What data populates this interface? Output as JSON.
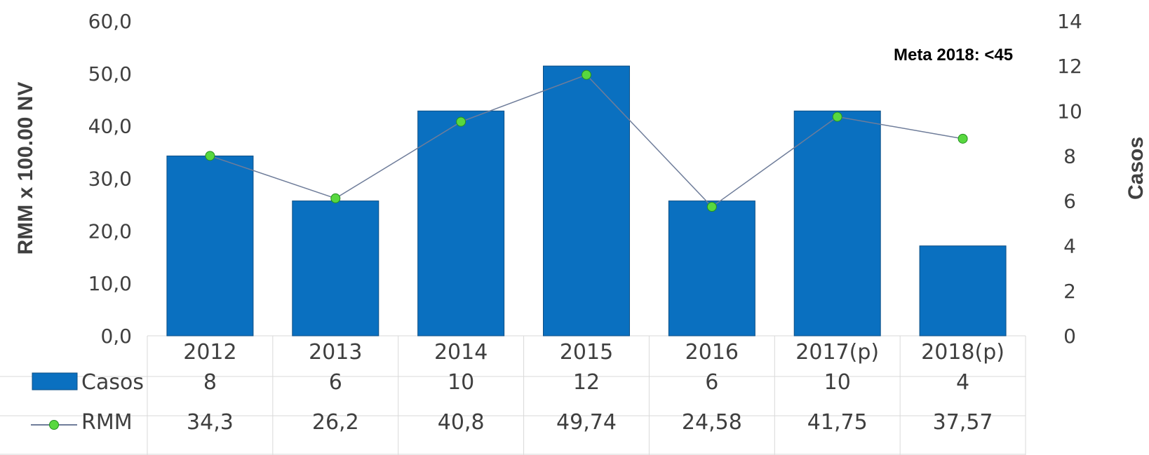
{
  "chart_data": {
    "type": "bar",
    "categories": [
      "2012",
      "2013",
      "2014",
      "2015",
      "2016",
      "2017(p)",
      "2018(p)"
    ],
    "series": [
      {
        "name": "Casos",
        "type": "bar",
        "axis": "right",
        "color": "#0a70c0",
        "values": [
          8,
          6,
          10,
          12,
          6,
          10,
          4
        ],
        "table_labels": [
          "8",
          "6",
          "10",
          "12",
          "6",
          "10",
          "4"
        ]
      },
      {
        "name": "RMM",
        "type": "line",
        "axis": "left",
        "color": "#58d83f",
        "values": [
          34.3,
          26.2,
          40.8,
          49.74,
          24.58,
          41.75,
          37.57
        ],
        "table_labels": [
          "34,3",
          "26,2",
          "40,8",
          "49,74",
          "24,58",
          "41,75",
          "37,57"
        ]
      }
    ],
    "y_left": {
      "label": "RMM x 100.00 NV",
      "range": [
        0,
        60
      ],
      "ticks": [
        "0,0",
        "10,0",
        "20,0",
        "30,0",
        "40,0",
        "50,0",
        "60,0"
      ]
    },
    "y_right": {
      "label": "Casos",
      "range": [
        0,
        14
      ],
      "ticks": [
        "0",
        "2",
        "4",
        "6",
        "8",
        "10",
        "12",
        "14"
      ]
    },
    "annotation": "Meta 2018: <45",
    "grid": false,
    "legend": "data-table-below"
  }
}
